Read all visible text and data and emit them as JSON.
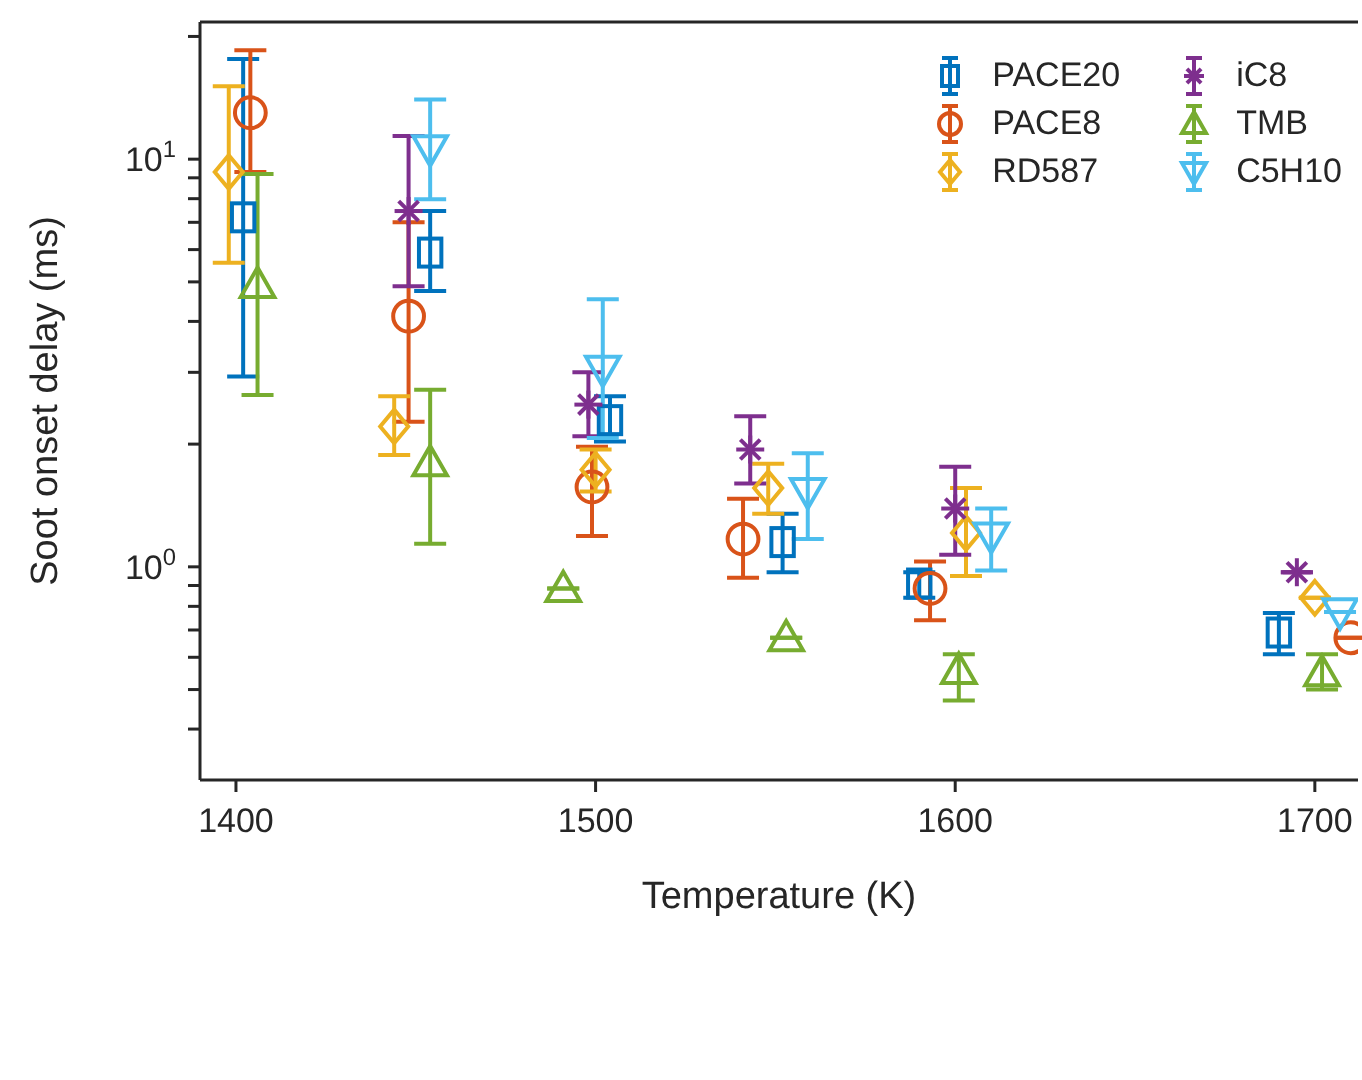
{
  "chart_data": {
    "type": "scatter",
    "xlabel": "Temperature (K)",
    "ylabel": "Soot onset delay (ms)",
    "log": "y",
    "xlim": [
      1390,
      1712
    ],
    "xticks": [
      1400,
      1500,
      1600,
      1700
    ],
    "ylim": [
      0.3,
      21.7
    ],
    "yticks": [
      {
        "value": 0.4,
        "label": null
      },
      {
        "value": 0.5,
        "label": null
      },
      {
        "value": 0.6,
        "label": null
      },
      {
        "value": 0.7,
        "label": null
      },
      {
        "value": 0.8,
        "label": null
      },
      {
        "value": 0.9,
        "label": null
      },
      {
        "value": 1,
        "label": "10$^{0}$"
      },
      {
        "value": 2,
        "label": null
      },
      {
        "value": 3,
        "label": null
      },
      {
        "value": 4,
        "label": null
      },
      {
        "value": 5,
        "label": null
      },
      {
        "value": 6,
        "label": null
      },
      {
        "value": 7,
        "label": null
      },
      {
        "value": 8,
        "label": null
      },
      {
        "value": 9,
        "label": null
      },
      {
        "value": 10,
        "label": "10$^{1}$"
      },
      {
        "value": 20,
        "label": null
      }
    ],
    "legend": "top right",
    "series": [
      {
        "name": "PACE20",
        "color": "#0072bd",
        "marker": "square",
        "x": [
          1402,
          1454,
          1504,
          1552,
          1590,
          1690
        ],
        "values": [
          7.2,
          5.9,
          2.29,
          1.15,
          0.91,
          0.69
        ],
        "errors": [
          [
            2.93,
            17.6
          ],
          [
            4.75,
            7.46
          ],
          [
            2.03,
            2.62
          ],
          [
            0.97,
            1.35
          ],
          [
            0.84,
            0.97
          ],
          [
            0.61,
            0.77
          ]
        ]
      },
      {
        "name": "PACE8",
        "color": "#d95319",
        "marker": "circle",
        "x": [
          1404,
          1448,
          1499,
          1541,
          1593,
          1710
        ],
        "values": [
          13.0,
          4.12,
          1.57,
          1.17,
          0.885,
          0.67
        ],
        "errors": [
          [
            9.3,
            18.5
          ],
          [
            2.27,
            7.0
          ],
          [
            1.19,
            1.97
          ],
          [
            0.94,
            1.47
          ],
          [
            0.74,
            1.03
          ],
          null
        ]
      },
      {
        "name": "RD587",
        "color": "#edb120",
        "marker": "diamond",
        "x": [
          1398,
          1444,
          1500,
          1548,
          1603,
          1700
        ],
        "values": [
          9.3,
          2.21,
          1.73,
          1.56,
          1.21,
          0.84
        ],
        "errors": [
          [
            5.57,
            15.1
          ],
          [
            1.88,
            2.62
          ],
          [
            1.53,
            1.94
          ],
          [
            1.35,
            1.79
          ],
          [
            0.95,
            1.56
          ],
          null
        ]
      },
      {
        "name": "iC8",
        "color": "#7e2f8e",
        "marker": "cross",
        "x": [
          1448,
          1498,
          1543,
          1600,
          1695
        ],
        "values": [
          7.46,
          2.5,
          1.94,
          1.39,
          0.97
        ],
        "errors": [
          [
            4.88,
            11.4
          ],
          [
            2.09,
            3.0
          ],
          [
            1.6,
            2.34
          ],
          [
            1.07,
            1.76
          ],
          null
        ]
      },
      {
        "name": "TMB",
        "color": "#77ac30",
        "marker": "triangle",
        "x": [
          1406,
          1454,
          1491,
          1553,
          1601,
          1702
        ],
        "values": [
          4.93,
          1.8,
          0.885,
          0.67,
          0.557,
          0.55
        ],
        "errors": [
          [
            2.64,
            9.2
          ],
          [
            1.14,
            2.72
          ],
          null,
          null,
          [
            0.47,
            0.61
          ],
          [
            0.5,
            0.61
          ]
        ]
      },
      {
        "name": "C5H10",
        "color": "#4dbeee",
        "marker": "triangle-down",
        "x": [
          1454,
          1502,
          1559,
          1610,
          1707
        ],
        "values": [
          10.6,
          3.05,
          1.53,
          1.19,
          0.775
        ],
        "errors": [
          [
            7.97,
            14.0
          ],
          [
            2.07,
            4.53
          ],
          [
            1.17,
            1.9
          ],
          [
            0.98,
            1.39
          ],
          null
        ]
      }
    ]
  }
}
